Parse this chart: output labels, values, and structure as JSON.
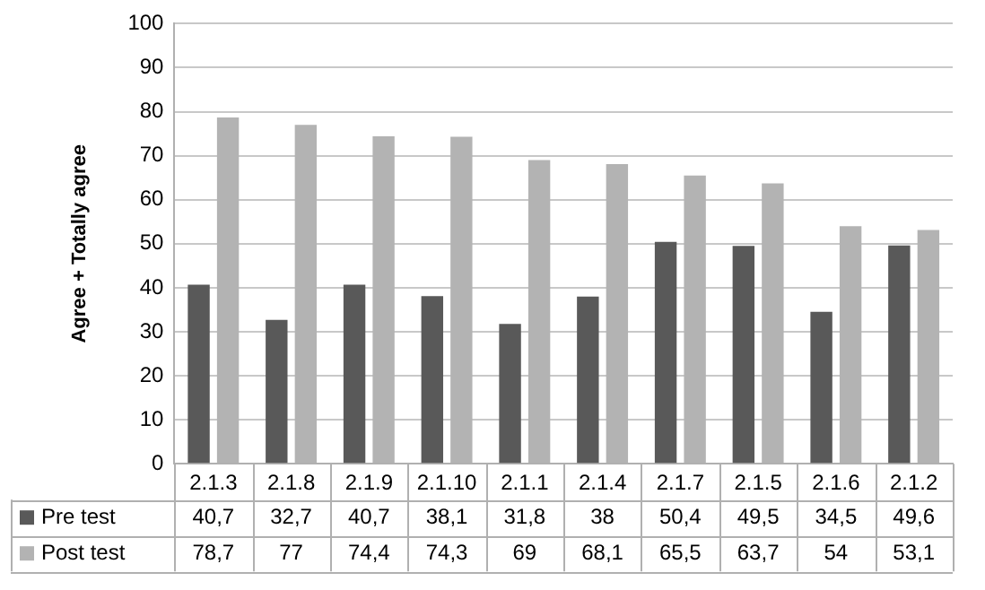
{
  "chart_data": {
    "type": "bar",
    "ylabel": "Agree + Totally agree",
    "categories": [
      "2.1.3",
      "2.1.8",
      "2.1.9",
      "2.1.10",
      "2.1.1",
      "2.1.4",
      "2.1.7",
      "2.1.5",
      "2.1.6",
      "2.1.2"
    ],
    "series": [
      {
        "name": "Pre test",
        "color": "#595959",
        "values": [
          40.7,
          32.7,
          40.7,
          38.1,
          31.8,
          38,
          50.4,
          49.5,
          34.5,
          49.6
        ],
        "value_labels": [
          "40,7",
          "32,7",
          "40,7",
          "38,1",
          "31,8",
          "38",
          "50,4",
          "49,5",
          "34,5",
          "49,6"
        ]
      },
      {
        "name": "Post test",
        "color": "#b3b3b3",
        "values": [
          78.7,
          77,
          74.4,
          74.3,
          69,
          68.1,
          65.5,
          63.7,
          54,
          53.1
        ],
        "value_labels": [
          "78,7",
          "77",
          "74,4",
          "74,3",
          "69",
          "68,1",
          "65,5",
          "63,7",
          "54",
          "53,1"
        ]
      }
    ],
    "ylim": [
      0,
      100
    ],
    "yticks": [
      0,
      10,
      20,
      30,
      40,
      50,
      60,
      70,
      80,
      90,
      100
    ],
    "grid": "y",
    "legend": "bottom"
  }
}
